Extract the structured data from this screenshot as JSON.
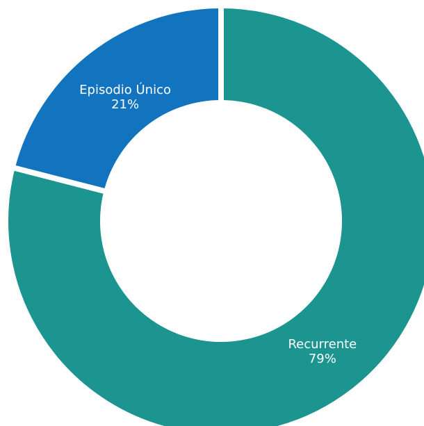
{
  "chart_data": {
    "type": "pie",
    "categories": [
      "Recurrente",
      "Episodio Único"
    ],
    "values": [
      79,
      21
    ],
    "value_labels": [
      "79%",
      "21%"
    ],
    "colors": [
      "#1c9490",
      "#1273be"
    ]
  }
}
